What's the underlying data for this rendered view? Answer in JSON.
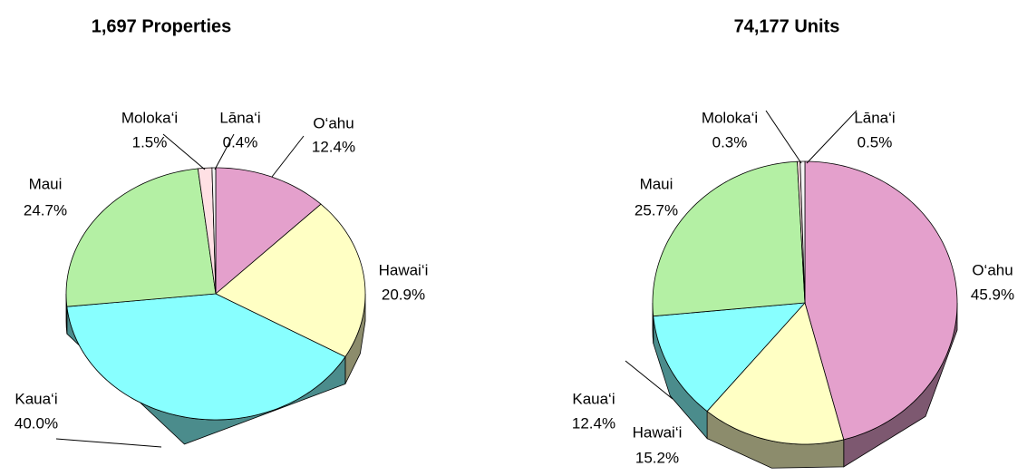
{
  "chart_data": [
    {
      "type": "pie",
      "title": "1,697 Properties",
      "categories": [
        "O‘ahu",
        "Hawai‘i",
        "Kaua‘i",
        "Maui",
        "Moloka‘i",
        "Lāna‘i"
      ],
      "values": [
        12.4,
        20.9,
        40.0,
        24.7,
        1.5,
        0.4
      ],
      "value_labels": [
        "12.4%",
        "20.9%",
        "40.0%",
        "24.7%",
        "1.5%",
        "0.4%"
      ],
      "colors": [
        "#e4a0cc",
        "#ffffc4",
        "#88ffff",
        "#b4f0a4",
        "#ffe0e4",
        "#f4f4f4"
      ]
    },
    {
      "type": "pie",
      "title": "74,177 Units",
      "categories": [
        "O‘ahu",
        "Hawai‘i",
        "Kaua‘i",
        "Maui",
        "Moloka‘i",
        "Lāna‘i"
      ],
      "values": [
        45.9,
        15.2,
        12.4,
        25.7,
        0.3,
        0.5
      ],
      "value_labels": [
        "45.9%",
        "15.2%",
        "12.4%",
        "25.7%",
        "0.3%",
        "0.5%"
      ],
      "colors": [
        "#e4a0cc",
        "#ffffc4",
        "#88ffff",
        "#b4f0a4",
        "#ffe0e4",
        "#f4f4f4"
      ]
    }
  ]
}
